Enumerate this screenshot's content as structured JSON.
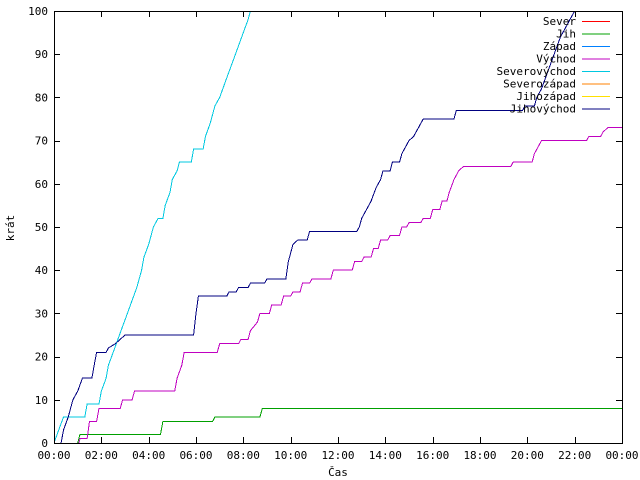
{
  "chart_data": {
    "type": "line",
    "xlabel": "Čas",
    "ylabel": "krát",
    "xlim": [
      0,
      24
    ],
    "ylim": [
      0,
      100
    ],
    "x_ticks": [
      "00:00",
      "02:00",
      "04:00",
      "06:00",
      "08:00",
      "10:00",
      "12:00",
      "14:00",
      "16:00",
      "18:00",
      "20:00",
      "22:00",
      "00:00"
    ],
    "y_ticks": [
      0,
      10,
      20,
      30,
      40,
      50,
      60,
      70,
      80,
      90,
      100
    ],
    "grid": false,
    "legend_position": "top-right",
    "series": [
      {
        "name": "Sever",
        "color": "#ff0000",
        "points": []
      },
      {
        "name": "Jih",
        "color": "#00a000",
        "points": [
          [
            1.0,
            0
          ],
          [
            1.1,
            2
          ],
          [
            4.5,
            2
          ],
          [
            4.6,
            5
          ],
          [
            6.7,
            5
          ],
          [
            6.8,
            6
          ],
          [
            8.7,
            6
          ],
          [
            8.8,
            8
          ],
          [
            24,
            8
          ]
        ]
      },
      {
        "name": "Západ",
        "color": "#0080ff",
        "points": []
      },
      {
        "name": "Východ",
        "color": "#c000c0",
        "points": [
          [
            1.05,
            0
          ],
          [
            1.1,
            1
          ],
          [
            1.4,
            1
          ],
          [
            1.5,
            5
          ],
          [
            1.8,
            5
          ],
          [
            1.9,
            8
          ],
          [
            2.8,
            8
          ],
          [
            2.9,
            10
          ],
          [
            3.3,
            10
          ],
          [
            3.4,
            12
          ],
          [
            5.1,
            12
          ],
          [
            5.2,
            15
          ],
          [
            5.4,
            18
          ],
          [
            5.5,
            21
          ],
          [
            6.9,
            21
          ],
          [
            7.0,
            23
          ],
          [
            7.8,
            23
          ],
          [
            7.9,
            24
          ],
          [
            8.2,
            24
          ],
          [
            8.3,
            26
          ],
          [
            8.6,
            28
          ],
          [
            8.7,
            30
          ],
          [
            9.1,
            30
          ],
          [
            9.2,
            32
          ],
          [
            9.6,
            32
          ],
          [
            9.7,
            34
          ],
          [
            10.0,
            34
          ],
          [
            10.1,
            35
          ],
          [
            10.4,
            35
          ],
          [
            10.5,
            37
          ],
          [
            10.8,
            37
          ],
          [
            10.9,
            38
          ],
          [
            11.7,
            38
          ],
          [
            11.8,
            40
          ],
          [
            12.6,
            40
          ],
          [
            12.7,
            42
          ],
          [
            13.0,
            42
          ],
          [
            13.1,
            43
          ],
          [
            13.4,
            43
          ],
          [
            13.5,
            45
          ],
          [
            13.7,
            45
          ],
          [
            13.8,
            47
          ],
          [
            14.1,
            47
          ],
          [
            14.2,
            48
          ],
          [
            14.6,
            48
          ],
          [
            14.7,
            50
          ],
          [
            14.9,
            50
          ],
          [
            15.0,
            51
          ],
          [
            15.5,
            51
          ],
          [
            15.6,
            52
          ],
          [
            15.9,
            52
          ],
          [
            16.0,
            54
          ],
          [
            16.3,
            54
          ],
          [
            16.4,
            56
          ],
          [
            16.6,
            56
          ],
          [
            16.7,
            58
          ],
          [
            16.9,
            61
          ],
          [
            17.1,
            63
          ],
          [
            17.3,
            64
          ],
          [
            19.3,
            64
          ],
          [
            19.4,
            65
          ],
          [
            20.2,
            65
          ],
          [
            20.3,
            67
          ],
          [
            20.5,
            69
          ],
          [
            20.6,
            70
          ],
          [
            22.5,
            70
          ],
          [
            22.6,
            71
          ],
          [
            23.1,
            71
          ],
          [
            23.2,
            72
          ],
          [
            23.4,
            73
          ],
          [
            24,
            73
          ]
        ]
      },
      {
        "name": "Severovýchod",
        "color": "#00c8e0",
        "points": [
          [
            0.0,
            0
          ],
          [
            0.2,
            3
          ],
          [
            0.4,
            6
          ],
          [
            1.3,
            6
          ],
          [
            1.4,
            9
          ],
          [
            1.9,
            9
          ],
          [
            2.0,
            12
          ],
          [
            2.2,
            15
          ],
          [
            2.3,
            18
          ],
          [
            2.5,
            21
          ],
          [
            2.7,
            24
          ],
          [
            2.9,
            27
          ],
          [
            3.1,
            30
          ],
          [
            3.3,
            33
          ],
          [
            3.5,
            36
          ],
          [
            3.7,
            40
          ],
          [
            3.8,
            43
          ],
          [
            4.0,
            46
          ],
          [
            4.2,
            50
          ],
          [
            4.4,
            52
          ],
          [
            4.6,
            52
          ],
          [
            4.7,
            55
          ],
          [
            4.9,
            58
          ],
          [
            5.0,
            61
          ],
          [
            5.2,
            63
          ],
          [
            5.3,
            65
          ],
          [
            5.8,
            65
          ],
          [
            5.9,
            68
          ],
          [
            6.3,
            68
          ],
          [
            6.4,
            71
          ],
          [
            6.6,
            74
          ],
          [
            6.8,
            78
          ],
          [
            7.0,
            80
          ],
          [
            7.2,
            83
          ],
          [
            7.4,
            86
          ],
          [
            7.6,
            89
          ],
          [
            7.8,
            92
          ],
          [
            8.0,
            95
          ],
          [
            8.2,
            98
          ],
          [
            8.3,
            100
          ]
        ]
      },
      {
        "name": "Severozápad",
        "color": "#ff8000",
        "points": []
      },
      {
        "name": "Jihozápad",
        "color": "#ffe000",
        "points": []
      },
      {
        "name": "Jihovýchod",
        "color": "#000080",
        "points": [
          [
            0.3,
            0
          ],
          [
            0.4,
            3
          ],
          [
            0.6,
            6
          ],
          [
            0.8,
            10
          ],
          [
            1.0,
            12
          ],
          [
            1.2,
            15
          ],
          [
            1.6,
            15
          ],
          [
            1.7,
            18
          ],
          [
            1.8,
            21
          ],
          [
            2.2,
            21
          ],
          [
            2.3,
            22
          ],
          [
            2.6,
            23
          ],
          [
            2.8,
            24
          ],
          [
            3.0,
            25
          ],
          [
            5.9,
            25
          ],
          [
            6.0,
            30
          ],
          [
            6.1,
            34
          ],
          [
            7.3,
            34
          ],
          [
            7.4,
            35
          ],
          [
            7.7,
            35
          ],
          [
            7.8,
            36
          ],
          [
            8.2,
            36
          ],
          [
            8.3,
            37
          ],
          [
            8.9,
            37
          ],
          [
            9.0,
            38
          ],
          [
            9.8,
            38
          ],
          [
            9.9,
            42
          ],
          [
            10.0,
            44
          ],
          [
            10.1,
            46
          ],
          [
            10.3,
            47
          ],
          [
            10.7,
            47
          ],
          [
            10.8,
            49
          ],
          [
            12.8,
            49
          ],
          [
            12.9,
            50
          ],
          [
            13.0,
            52
          ],
          [
            13.2,
            54
          ],
          [
            13.4,
            56
          ],
          [
            13.6,
            59
          ],
          [
            13.8,
            61
          ],
          [
            13.9,
            63
          ],
          [
            14.2,
            63
          ],
          [
            14.3,
            65
          ],
          [
            14.6,
            65
          ],
          [
            14.7,
            67
          ],
          [
            14.8,
            68
          ],
          [
            15.0,
            70
          ],
          [
            15.2,
            71
          ],
          [
            15.4,
            73
          ],
          [
            15.6,
            75
          ],
          [
            16.9,
            75
          ],
          [
            17.0,
            77
          ],
          [
            19.8,
            77
          ],
          [
            19.9,
            78
          ],
          [
            20.3,
            78
          ],
          [
            20.4,
            80
          ],
          [
            20.6,
            82
          ],
          [
            20.8,
            85
          ],
          [
            21.0,
            88
          ],
          [
            21.2,
            91
          ],
          [
            21.4,
            94
          ],
          [
            21.6,
            96
          ],
          [
            21.8,
            98
          ],
          [
            22.0,
            100
          ]
        ]
      }
    ]
  }
}
